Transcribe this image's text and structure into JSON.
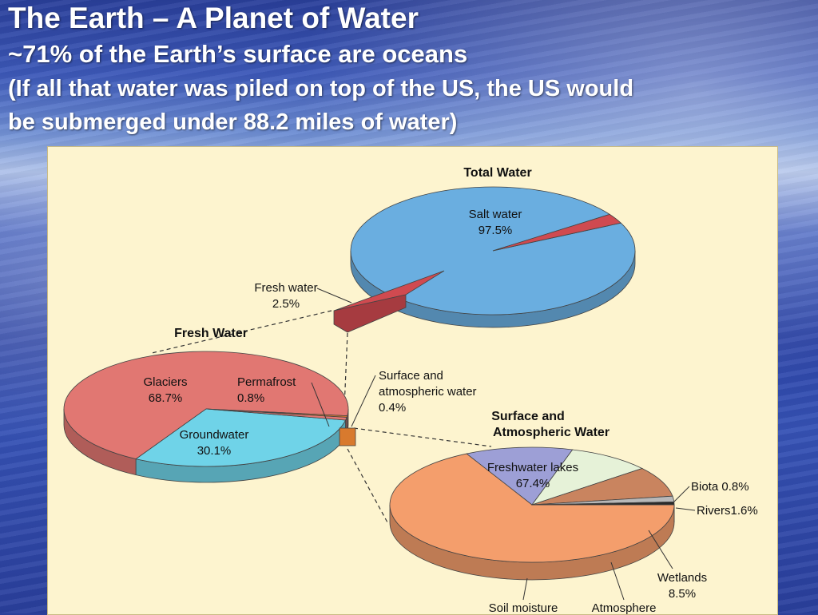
{
  "slide": {
    "title": "The Earth – A Planet of Water",
    "subtitle": "~71% of the Earth’s surface are oceans",
    "note_line1": "(If all that water was piled on top of the US, the US would",
    "note_line2": "be submerged under 88.2 miles of water)"
  },
  "colors": {
    "salt_water": "#6aaee0",
    "fresh_water": "#d04a50",
    "glaciers": "#e17772",
    "groundwater": "#6fd3e8",
    "freshwater_lakes": "#f49e6c",
    "soil_moisture": "#9d9fd6",
    "atmosphere": "#e6f2d8",
    "wetlands": "#c9845f",
    "rivers": "#b8b8b8",
    "biota": "#2a2a2a",
    "surface_atmospheric": "#d87a2e"
  },
  "chart_data": [
    {
      "type": "pie",
      "title": "Total Water",
      "slices": [
        {
          "label": "Salt water",
          "value": 97.5,
          "value_label": "97.5%"
        },
        {
          "label": "Fresh water",
          "value": 2.5,
          "value_label": "2.5%"
        }
      ]
    },
    {
      "type": "pie",
      "title": "Fresh Water",
      "slices": [
        {
          "label": "Glaciers",
          "value": 68.7,
          "value_label": "68.7%"
        },
        {
          "label": "Groundwater",
          "value": 30.1,
          "value_label": "30.1%"
        },
        {
          "label": "Permafrost",
          "value": 0.8,
          "value_label": "0.8%"
        },
        {
          "label": "Surface and atmospheric water",
          "value": 0.4,
          "value_label": "0.4%"
        }
      ]
    },
    {
      "type": "pie",
      "title": "Surface and Atmospheric Water",
      "slices": [
        {
          "label": "Freshwater lakes",
          "value": 67.4,
          "value_label": "67.4%"
        },
        {
          "label": "Soil moisture",
          "value": 12.2,
          "value_label": ""
        },
        {
          "label": "Atmosphere",
          "value": 9.5,
          "value_label": ""
        },
        {
          "label": "Wetlands",
          "value": 8.5,
          "value_label": "8.5%"
        },
        {
          "label": "Rivers",
          "value": 1.6,
          "value_label": "1.6%"
        },
        {
          "label": "Biota",
          "value": 0.8,
          "value_label": "0.8%"
        }
      ]
    }
  ]
}
